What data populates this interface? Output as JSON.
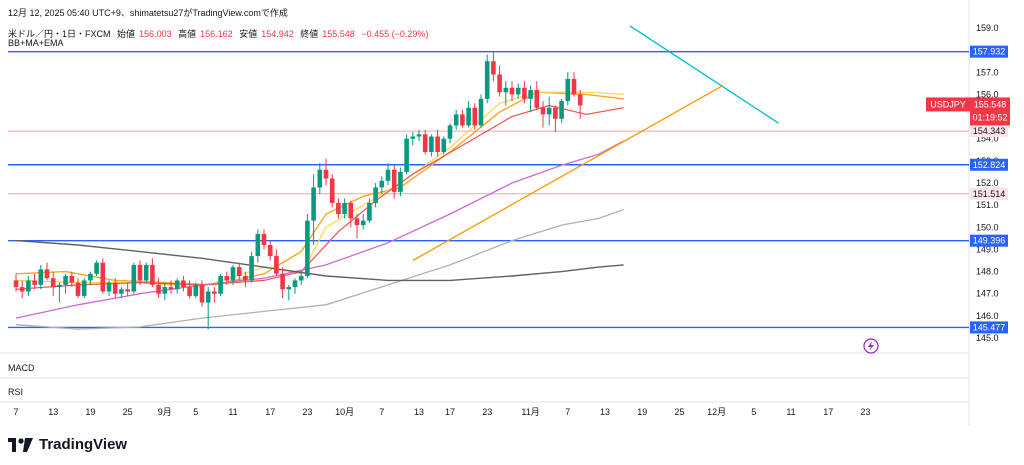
{
  "header": {
    "published": "12月 12, 2025 05:40 UTC+9、shimatetsu27がTradingView.comで作成"
  },
  "symbol": {
    "name": "米ドル／円・1日・FXCM",
    "open_label": "始値",
    "open": "156.003",
    "high_label": "高値",
    "high": "156.162",
    "low_label": "安値",
    "low": "154.942",
    "close_label": "終値",
    "close": "155.548",
    "change": "−0.455 (−0.29%)"
  },
  "indicators_label": "BB+MA+EMA",
  "panes": {
    "macd": "MACD",
    "rsi": "RSI"
  },
  "logo": {
    "text": "TradingView",
    "icon": "tradingview-logo-icon"
  },
  "alert_icon": "lightning-icon",
  "colors": {
    "up": "#089981",
    "down": "#f23645",
    "hline": "#2962ff",
    "pink_line": "#f7a1a8",
    "trend": "#00bcd4"
  },
  "chart_data": {
    "type": "candlestick",
    "symbol": "USDJPY",
    "timeframe": "1D",
    "ylim": [
      145.0,
      159.0
    ],
    "y_ticks": [
      145.0,
      146.0,
      147.0,
      148.0,
      149.0,
      150.0,
      151.0,
      152.0,
      153.0,
      154.0,
      155.0,
      156.0,
      157.0,
      158.0,
      159.0
    ],
    "x_ticks": [
      "7",
      "13",
      "19",
      "25",
      "9月",
      "5",
      "11",
      "17",
      "23",
      "10月",
      "7",
      "13",
      "17",
      "23",
      "11月",
      "7",
      "13",
      "19",
      "25",
      "12月",
      "5",
      "11",
      "17",
      "23"
    ],
    "x_tick_index": [
      0,
      6,
      12,
      18,
      24,
      29,
      35,
      41,
      47,
      53,
      59,
      65,
      70,
      76,
      83,
      89,
      95,
      101,
      107,
      113,
      119,
      125,
      131,
      137
    ],
    "price_label": {
      "symbol": "USDJPY",
      "price": "155.548",
      "countdown": "01:19:52"
    },
    "horizontal_levels": [
      {
        "value": 157.932,
        "label": "157.932",
        "style": "blue"
      },
      {
        "value": 154.343,
        "label": "154.343",
        "style": "pink"
      },
      {
        "value": 152.824,
        "label": "152.824",
        "style": "blue"
      },
      {
        "value": 151.514,
        "label": "151.514",
        "style": "pink"
      },
      {
        "value": 149.396,
        "label": "149.396",
        "style": "blue"
      },
      {
        "value": 145.477,
        "label": "145.477",
        "style": "blue"
      }
    ],
    "trendlines": [
      {
        "color": "#00bcd4",
        "from": [
          99,
          159.1
        ],
        "to": [
          123,
          154.7
        ]
      },
      {
        "color": "#ff9800",
        "from": [
          64,
          148.5
        ],
        "to": [
          114,
          156.4
        ]
      }
    ],
    "candles": [
      [
        147.6,
        147.9,
        147.1,
        147.3
      ],
      [
        147.3,
        147.6,
        146.8,
        147.1
      ],
      [
        147.1,
        147.8,
        146.9,
        147.6
      ],
      [
        147.6,
        147.9,
        147.2,
        147.4
      ],
      [
        147.4,
        148.3,
        147.2,
        148.1
      ],
      [
        148.1,
        148.4,
        147.6,
        147.7
      ],
      [
        147.7,
        148.0,
        146.9,
        147.3
      ],
      [
        147.3,
        147.5,
        146.6,
        147.4
      ],
      [
        147.4,
        147.9,
        147.0,
        147.8
      ],
      [
        147.8,
        148.0,
        147.3,
        147.5
      ],
      [
        147.5,
        147.7,
        146.8,
        146.9
      ],
      [
        146.9,
        147.7,
        146.8,
        147.6
      ],
      [
        147.6,
        148.0,
        147.4,
        147.9
      ],
      [
        147.9,
        148.5,
        147.8,
        148.4
      ],
      [
        148.4,
        148.6,
        147.0,
        147.1
      ],
      [
        147.1,
        147.6,
        146.9,
        147.5
      ],
      [
        147.5,
        147.7,
        146.8,
        147.0
      ],
      [
        147.0,
        147.3,
        146.8,
        147.2
      ],
      [
        147.2,
        147.5,
        146.9,
        147.1
      ],
      [
        147.1,
        148.4,
        147.0,
        148.3
      ],
      [
        148.3,
        148.5,
        147.4,
        147.6
      ],
      [
        147.6,
        148.4,
        147.5,
        148.3
      ],
      [
        148.3,
        148.6,
        147.3,
        147.4
      ],
      [
        147.4,
        147.7,
        146.8,
        147.0
      ],
      [
        147.0,
        147.5,
        146.7,
        147.3
      ],
      [
        147.3,
        147.6,
        147.0,
        147.2
      ],
      [
        147.2,
        147.7,
        147.0,
        147.6
      ],
      [
        147.6,
        147.8,
        147.1,
        147.3
      ],
      [
        147.3,
        147.6,
        146.8,
        146.9
      ],
      [
        146.9,
        147.5,
        146.8,
        147.4
      ],
      [
        147.4,
        147.6,
        146.4,
        146.6
      ],
      [
        146.6,
        147.3,
        145.4,
        147.1
      ],
      [
        147.1,
        147.3,
        146.6,
        147.0
      ],
      [
        147.0,
        147.9,
        146.9,
        147.8
      ],
      [
        147.8,
        148.0,
        147.4,
        147.6
      ],
      [
        147.6,
        148.3,
        147.4,
        148.2
      ],
      [
        148.2,
        148.4,
        147.6,
        147.8
      ],
      [
        147.8,
        148.0,
        147.3,
        147.6
      ],
      [
        147.6,
        148.9,
        147.5,
        148.7
      ],
      [
        148.7,
        149.9,
        148.4,
        149.7
      ],
      [
        149.7,
        149.9,
        149.0,
        149.2
      ],
      [
        149.2,
        149.4,
        148.5,
        148.7
      ],
      [
        148.7,
        149.0,
        147.8,
        147.9
      ],
      [
        147.9,
        148.2,
        146.8,
        147.2
      ],
      [
        147.2,
        147.4,
        146.7,
        147.3
      ],
      [
        147.3,
        147.7,
        147.0,
        147.6
      ],
      [
        147.6,
        148.0,
        147.4,
        147.8
      ],
      [
        147.8,
        150.6,
        147.7,
        150.3
      ],
      [
        150.3,
        152.4,
        149.2,
        151.8
      ],
      [
        151.8,
        152.9,
        151.5,
        152.6
      ],
      [
        152.6,
        153.1,
        151.9,
        152.2
      ],
      [
        152.2,
        152.4,
        150.9,
        151.1
      ],
      [
        151.1,
        151.3,
        150.4,
        150.6
      ],
      [
        150.6,
        151.3,
        150.4,
        151.1
      ],
      [
        151.1,
        151.2,
        150.0,
        150.4
      ],
      [
        150.4,
        150.6,
        149.5,
        150.1
      ],
      [
        150.1,
        150.6,
        149.9,
        150.3
      ],
      [
        150.3,
        151.3,
        150.2,
        151.1
      ],
      [
        151.1,
        152.0,
        150.9,
        151.8
      ],
      [
        151.8,
        152.3,
        151.5,
        152.1
      ],
      [
        152.1,
        152.9,
        151.9,
        152.6
      ],
      [
        152.6,
        152.8,
        151.3,
        151.6
      ],
      [
        151.6,
        152.7,
        151.4,
        152.5
      ],
      [
        152.5,
        154.2,
        152.4,
        154.0
      ],
      [
        154.0,
        154.3,
        153.7,
        154.1
      ],
      [
        154.1,
        154.4,
        153.9,
        154.2
      ],
      [
        154.2,
        154.4,
        153.3,
        153.4
      ],
      [
        153.4,
        154.2,
        153.2,
        154.1
      ],
      [
        154.1,
        154.4,
        153.2,
        153.4
      ],
      [
        153.4,
        154.1,
        153.3,
        154.0
      ],
      [
        154.0,
        154.7,
        153.8,
        154.6
      ],
      [
        154.6,
        155.3,
        154.4,
        155.1
      ],
      [
        155.1,
        155.3,
        154.5,
        154.6
      ],
      [
        154.6,
        155.7,
        154.5,
        155.4
      ],
      [
        155.4,
        155.6,
        154.4,
        154.6
      ],
      [
        154.6,
        156.0,
        154.5,
        155.8
      ],
      [
        155.8,
        157.8,
        155.6,
        157.5
      ],
      [
        157.5,
        157.9,
        156.6,
        156.9
      ],
      [
        156.9,
        157.3,
        155.9,
        156.1
      ],
      [
        156.1,
        156.6,
        155.5,
        156.3
      ],
      [
        156.3,
        156.6,
        155.7,
        156.0
      ],
      [
        156.0,
        156.5,
        155.8,
        156.3
      ],
      [
        156.3,
        156.6,
        155.6,
        155.8
      ],
      [
        155.8,
        156.4,
        155.2,
        156.2
      ],
      [
        156.2,
        156.6,
        155.3,
        155.4
      ],
      [
        155.4,
        155.7,
        154.5,
        155.1
      ],
      [
        155.1,
        155.9,
        154.6,
        155.4
      ],
      [
        155.4,
        155.5,
        154.3,
        154.9
      ],
      [
        154.9,
        155.8,
        154.7,
        155.7
      ],
      [
        155.7,
        157.0,
        155.5,
        156.7
      ],
      [
        156.7,
        157.0,
        155.9,
        156.0
      ],
      [
        156.0,
        156.2,
        154.9,
        155.5
      ]
    ],
    "lines": [
      {
        "name": "BB upper / EMA (orange)",
        "color": "#f5a623",
        "width": 1.4,
        "points": [
          [
            0,
            147.9
          ],
          [
            8,
            148.0
          ],
          [
            16,
            147.6
          ],
          [
            24,
            147.5
          ],
          [
            32,
            147.4
          ],
          [
            40,
            147.9
          ],
          [
            46,
            148.9
          ],
          [
            50,
            150.6
          ],
          [
            56,
            151.4
          ],
          [
            62,
            151.8
          ],
          [
            70,
            153.4
          ],
          [
            78,
            155.2
          ],
          [
            84,
            156.1
          ],
          [
            92,
            156.0
          ],
          [
            98,
            155.8
          ]
        ]
      },
      {
        "name": "EMA short (yellow)",
        "color": "#ffd54f",
        "width": 1.2,
        "points": [
          [
            0,
            147.6
          ],
          [
            10,
            147.5
          ],
          [
            20,
            147.5
          ],
          [
            30,
            147.3
          ],
          [
            40,
            148.2
          ],
          [
            46,
            147.9
          ],
          [
            50,
            150.0
          ],
          [
            56,
            151.0
          ],
          [
            62,
            152.0
          ],
          [
            70,
            153.6
          ],
          [
            78,
            155.6
          ],
          [
            84,
            156.1
          ],
          [
            92,
            156.1
          ],
          [
            98,
            156.0
          ]
        ]
      },
      {
        "name": "MA (red)",
        "color": "#ef5350",
        "width": 1.2,
        "points": [
          [
            0,
            147.2
          ],
          [
            10,
            147.4
          ],
          [
            20,
            147.5
          ],
          [
            30,
            147.4
          ],
          [
            40,
            147.6
          ],
          [
            46,
            148.0
          ],
          [
            52,
            149.8
          ],
          [
            58,
            151.2
          ],
          [
            64,
            152.4
          ],
          [
            72,
            153.7
          ],
          [
            80,
            155.0
          ],
          [
            86,
            155.5
          ],
          [
            92,
            155.1
          ],
          [
            98,
            155.4
          ]
        ]
      },
      {
        "name": "MA (purple)",
        "color": "#ce69d6",
        "width": 1.3,
        "points": [
          [
            0,
            145.9
          ],
          [
            10,
            146.5
          ],
          [
            20,
            147.0
          ],
          [
            30,
            147.4
          ],
          [
            40,
            147.7
          ],
          [
            50,
            148.3
          ],
          [
            60,
            149.3
          ],
          [
            70,
            150.6
          ],
          [
            80,
            152.0
          ],
          [
            88,
            152.8
          ],
          [
            94,
            153.3
          ],
          [
            98,
            153.9
          ]
        ]
      },
      {
        "name": "MA (gray)",
        "color": "#b0b0b0",
        "width": 1.3,
        "points": [
          [
            0,
            145.6
          ],
          [
            10,
            145.4
          ],
          [
            20,
            145.5
          ],
          [
            30,
            145.9
          ],
          [
            40,
            146.2
          ],
          [
            50,
            146.5
          ],
          [
            60,
            147.4
          ],
          [
            70,
            148.3
          ],
          [
            80,
            149.4
          ],
          [
            88,
            150.1
          ],
          [
            94,
            150.4
          ],
          [
            98,
            150.8
          ]
        ]
      },
      {
        "name": "MA (dark)",
        "color": "#616161",
        "width": 1.4,
        "points": [
          [
            0,
            149.4
          ],
          [
            10,
            149.2
          ],
          [
            20,
            148.9
          ],
          [
            30,
            148.6
          ],
          [
            40,
            148.2
          ],
          [
            50,
            147.8
          ],
          [
            60,
            147.6
          ],
          [
            70,
            147.6
          ],
          [
            80,
            147.8
          ],
          [
            88,
            148.0
          ],
          [
            94,
            148.2
          ],
          [
            98,
            148.3
          ]
        ]
      }
    ]
  }
}
